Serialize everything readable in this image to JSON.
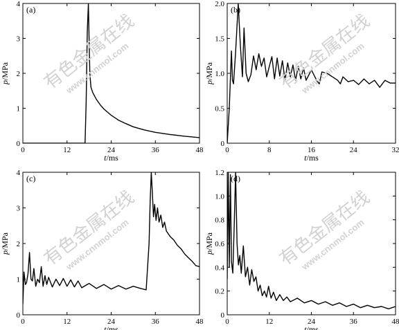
{
  "watermark": {
    "cn": "有色金属在线",
    "url": "www.cnnmol.com"
  },
  "chart_data": [
    {
      "type": "line",
      "panel_label": "(a)",
      "xlabel": "t/ms",
      "ylabel": "p/MPa",
      "xlim": [
        0,
        48
      ],
      "ylim": [
        0,
        4
      ],
      "xticks": [
        0,
        12,
        24,
        36,
        48
      ],
      "yticks": [
        0,
        1,
        2,
        3,
        4
      ],
      "ytick_labels": [
        "0",
        "1",
        "2",
        "3",
        "4"
      ],
      "x": [
        0,
        16.9,
        17.2,
        17.5,
        17.8,
        18.0,
        18.2,
        18.5,
        19,
        20,
        21,
        22,
        24,
        26,
        28,
        30,
        33,
        36,
        40,
        44,
        48
      ],
      "y": [
        0,
        0,
        1.2,
        3.2,
        4.0,
        3.0,
        2.0,
        1.6,
        1.45,
        1.25,
        1.1,
        0.98,
        0.8,
        0.66,
        0.56,
        0.47,
        0.38,
        0.31,
        0.25,
        0.2,
        0.16
      ]
    },
    {
      "type": "line",
      "panel_label": "(b)",
      "xlabel": "t/ms",
      "ylabel": "p/MPa",
      "xlim": [
        0,
        32
      ],
      "ylim": [
        0,
        2.0
      ],
      "xticks": [
        0,
        8,
        16,
        24,
        32
      ],
      "yticks": [
        0,
        0.5,
        1.0,
        1.5,
        2.0
      ],
      "ytick_labels": [
        "0",
        "0.5",
        "1.0",
        "1.5",
        "2.0"
      ],
      "x": [
        0,
        0.4,
        0.8,
        1.0,
        1.2,
        1.6,
        2.1,
        2.5,
        2.9,
        3.2,
        3.6,
        4.0,
        4.5,
        5.0,
        5.5,
        6.0,
        6.5,
        7.0,
        7.5,
        8.0,
        8.5,
        9.0,
        9.5,
        10.0,
        10.5,
        11.0,
        11.5,
        12.0,
        12.5,
        13.0,
        13.5,
        14.0,
        14.5,
        15.0,
        16.0,
        17.0,
        17.5,
        18.0,
        19.0,
        20.0,
        21.0,
        21.5,
        22.0,
        23.0,
        24.0,
        25.0,
        26.0,
        27.0,
        28.0,
        29.0,
        30.0,
        31.0,
        32.0
      ],
      "y": [
        0,
        0.5,
        1.32,
        0.9,
        0.85,
        1.3,
        2.0,
        1.4,
        0.95,
        1.65,
        1.0,
        0.88,
        0.98,
        1.25,
        1.05,
        1.28,
        1.1,
        1.22,
        0.95,
        1.1,
        1.24,
        0.92,
        1.22,
        0.96,
        1.18,
        0.9,
        1.15,
        0.95,
        1.12,
        0.9,
        1.1,
        0.92,
        1.08,
        0.9,
        1.05,
        0.9,
        0.85,
        1.02,
        1.0,
        0.95,
        0.9,
        0.85,
        0.95,
        0.88,
        0.9,
        0.84,
        0.92,
        0.85,
        0.9,
        0.8,
        0.9,
        0.86,
        0.86
      ]
    },
    {
      "type": "line",
      "panel_label": "(c)",
      "xlabel": "t/ms",
      "ylabel": "p/MPa",
      "xlim": [
        0,
        48
      ],
      "ylim": [
        0,
        4
      ],
      "xticks": [
        0,
        12,
        24,
        36,
        48
      ],
      "yticks": [
        0,
        1,
        2,
        3,
        4
      ],
      "ytick_labels": [
        "0",
        "1",
        "2",
        "3",
        "4"
      ],
      "x": [
        0,
        0.3,
        0.7,
        1.0,
        1.4,
        1.8,
        2.2,
        2.6,
        3.0,
        3.5,
        4.0,
        4.5,
        5.0,
        5.5,
        6.0,
        6.5,
        7.0,
        8,
        9,
        10,
        11,
        12,
        13,
        14,
        15,
        16,
        18,
        20,
        22,
        24,
        26,
        28,
        30,
        32,
        33.5,
        34.3,
        34.6,
        34.9,
        35.2,
        35.5,
        35.8,
        36.2,
        36.6,
        37.0,
        37.5,
        38.0,
        38.5,
        39,
        40,
        41,
        42,
        43,
        44,
        45,
        46,
        47,
        48
      ],
      "y": [
        0.3,
        1.2,
        0.85,
        0.9,
        1.15,
        1.75,
        1.0,
        0.95,
        1.3,
        0.8,
        1.0,
        0.9,
        1.35,
        0.8,
        1.1,
        0.85,
        1.05,
        0.78,
        1.0,
        0.82,
        1.02,
        0.8,
        0.98,
        0.78,
        0.95,
        0.76,
        0.88,
        0.74,
        0.85,
        0.72,
        0.82,
        0.72,
        0.8,
        0.74,
        0.7,
        2.0,
        3.2,
        4.0,
        3.4,
        2.75,
        3.1,
        2.65,
        3.0,
        2.6,
        2.8,
        2.45,
        2.6,
        2.35,
        2.2,
        2.1,
        1.95,
        1.85,
        1.7,
        1.6,
        1.5,
        1.38,
        1.35
      ]
    },
    {
      "type": "line",
      "panel_label": "(d)",
      "xlabel": "t/ms",
      "ylabel": "p/MPa",
      "xlim": [
        0,
        48
      ],
      "ylim": [
        0,
        1.2
      ],
      "xticks": [
        0,
        12,
        24,
        36,
        48
      ],
      "yticks": [
        0,
        0.2,
        0.4,
        0.6,
        0.8,
        1.0,
        1.2
      ],
      "ytick_labels": [
        "0",
        "0.2",
        "0.4",
        "0.6",
        "0.8",
        "1.0",
        "1.2"
      ],
      "x": [
        0,
        0.3,
        0.6,
        0.9,
        1.2,
        1.6,
        2.0,
        2.4,
        2.8,
        3.2,
        3.6,
        4.0,
        4.6,
        5.2,
        5.8,
        6.4,
        7.0,
        7.6,
        8.2,
        8.8,
        9.4,
        10.0,
        10.6,
        11.2,
        11.8,
        12.5,
        13.2,
        14.0,
        15,
        16,
        17,
        18,
        20,
        22,
        24,
        26,
        28,
        30,
        32,
        34,
        36,
        38,
        40,
        42,
        44,
        46,
        48
      ],
      "y": [
        0.3,
        1.2,
        0.4,
        1.18,
        0.45,
        0.35,
        0.75,
        1.2,
        0.6,
        0.42,
        0.5,
        0.35,
        0.58,
        0.32,
        0.4,
        0.25,
        0.38,
        0.28,
        0.32,
        0.2,
        0.25,
        0.16,
        0.2,
        0.15,
        0.24,
        0.14,
        0.19,
        0.12,
        0.17,
        0.12,
        0.15,
        0.11,
        0.14,
        0.1,
        0.12,
        0.09,
        0.11,
        0.08,
        0.1,
        0.07,
        0.09,
        0.06,
        0.08,
        0.06,
        0.07,
        0.05,
        0.07
      ]
    }
  ]
}
